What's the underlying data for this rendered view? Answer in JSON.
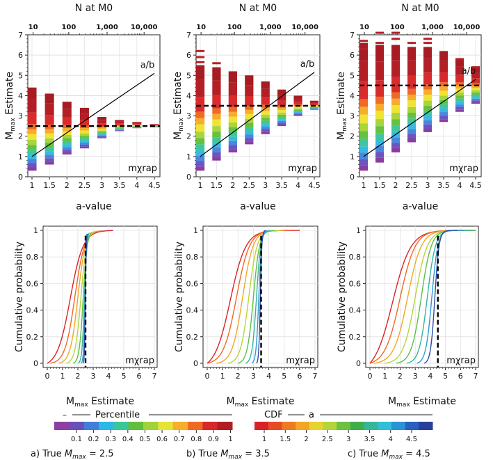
{
  "chart_data": [
    {
      "type": "bar",
      "panel": "a",
      "title": "",
      "xlabel": "a-value",
      "ylabel": "Mmax Estimate",
      "top_xlabel": "N at M0",
      "top_ticks": [
        "10",
        "100",
        "1,000",
        "10,000"
      ],
      "categories": [
        "1",
        "1.5",
        "2",
        "2.5",
        "3",
        "3.5",
        "4",
        "4.5"
      ],
      "ylim": [
        0,
        7
      ],
      "yticks": [
        0,
        1,
        2,
        3,
        4,
        5,
        6,
        7
      ],
      "true_mmax": 2.5,
      "ab_line": {
        "label": "a/b",
        "x": [
          1,
          4.5
        ],
        "y": [
          1.0,
          5.1
        ]
      },
      "bars": [
        {
          "a": 1,
          "low": 0.3,
          "high": 4.4
        },
        {
          "a": 1.5,
          "low": 0.6,
          "high": 4.1
        },
        {
          "a": 2,
          "low": 1.1,
          "high": 3.7
        },
        {
          "a": 2.5,
          "low": 1.4,
          "high": 3.4
        },
        {
          "a": 3,
          "low": 1.9,
          "high": 2.95
        },
        {
          "a": 3.5,
          "low": 2.25,
          "high": 2.8
        },
        {
          "a": 4,
          "low": 2.4,
          "high": 2.7
        },
        {
          "a": 4.5,
          "low": 2.45,
          "high": 2.6
        }
      ],
      "error_marks": [],
      "watermark": "mχrap"
    },
    {
      "type": "bar",
      "panel": "b",
      "title": "",
      "xlabel": "a-value",
      "ylabel": "Mmax Estimate",
      "top_xlabel": "N at M0",
      "top_ticks": [
        "10",
        "100",
        "1,000",
        "10,000"
      ],
      "categories": [
        "1",
        "1.5",
        "2",
        "2.5",
        "3",
        "3.5",
        "4",
        "4.5"
      ],
      "ylim": [
        0,
        7
      ],
      "yticks": [
        0,
        1,
        2,
        3,
        4,
        5,
        6,
        7
      ],
      "true_mmax": 3.5,
      "ab_line": {
        "label": "a/b",
        "x": [
          1,
          4.5
        ],
        "y": [
          1.0,
          5.15
        ]
      },
      "bars": [
        {
          "a": 1,
          "low": 0.3,
          "high": 5.5
        },
        {
          "a": 1.5,
          "low": 0.8,
          "high": 5.4
        },
        {
          "a": 2,
          "low": 1.2,
          "high": 5.2
        },
        {
          "a": 2.5,
          "low": 1.6,
          "high": 5.0
        },
        {
          "a": 3,
          "low": 2.1,
          "high": 4.7
        },
        {
          "a": 3.5,
          "low": 2.5,
          "high": 4.3
        },
        {
          "a": 4,
          "low": 3.0,
          "high": 4.0
        },
        {
          "a": 4.5,
          "low": 3.3,
          "high": 3.75
        }
      ],
      "error_marks": [
        {
          "a": 1,
          "values": [
            6.2,
            5.9,
            5.65
          ]
        },
        {
          "a": 1.5,
          "values": [
            5.6
          ]
        }
      ],
      "watermark": "mχrap"
    },
    {
      "type": "bar",
      "panel": "c",
      "title": "",
      "xlabel": "a-value",
      "ylabel": "Mmax Estimate",
      "top_xlabel": "N at M0",
      "top_ticks": [
        "10",
        "100",
        "1,000",
        "10,000"
      ],
      "categories": [
        "1",
        "1.5",
        "2",
        "2.5",
        "3",
        "3.5",
        "4",
        "4.5"
      ],
      "ylim": [
        0,
        7
      ],
      "yticks": [
        0,
        1,
        2,
        3,
        4,
        5,
        6,
        7
      ],
      "true_mmax": 4.5,
      "ab_line": {
        "label": "a/b",
        "x": [
          1,
          4.5
        ],
        "y": [
          1.0,
          4.8
        ]
      },
      "bars": [
        {
          "a": 1,
          "low": 0.3,
          "high": 6.6
        },
        {
          "a": 1.5,
          "low": 0.7,
          "high": 6.5
        },
        {
          "a": 2,
          "low": 1.2,
          "high": 6.5
        },
        {
          "a": 2.5,
          "low": 1.7,
          "high": 6.4
        },
        {
          "a": 3,
          "low": 2.2,
          "high": 6.4
        },
        {
          "a": 3.5,
          "low": 2.7,
          "high": 6.2
        },
        {
          "a": 4,
          "low": 3.2,
          "high": 5.8
        },
        {
          "a": 4.5,
          "low": 3.6,
          "high": 5.4
        }
      ],
      "error_marks": [
        {
          "a": 1,
          "values": [
            6.7,
            6.3
          ]
        },
        {
          "a": 1.5,
          "values": [
            7.1,
            6.6
          ]
        },
        {
          "a": 2,
          "values": [
            7.1,
            6.8
          ]
        },
        {
          "a": 2.5,
          "values": [
            6.6
          ]
        },
        {
          "a": 3,
          "values": [
            6.8,
            6.6
          ]
        },
        {
          "a": 4,
          "values": [
            5.8
          ]
        },
        {
          "a": 4.5,
          "values": [
            5.4
          ]
        }
      ],
      "watermark": "mχrap"
    },
    {
      "type": "line",
      "panel": "a",
      "xlabel": "Mmax Estimate",
      "ylabel": "Cumulative probability",
      "xlim": [
        0,
        7
      ],
      "xticks": [
        0,
        1,
        2,
        3,
        4,
        5,
        6,
        7
      ],
      "ylim": [
        0,
        1
      ],
      "yticks": [
        0,
        0.2,
        0.4,
        0.6,
        0.8,
        1
      ],
      "ytick_labels": [
        "0",
        "0.2",
        "0.4",
        "0.6",
        "0.8",
        "1"
      ],
      "true_mmax": 2.5,
      "series": [
        {
          "a": 1,
          "median": 1.5,
          "spread": 0.42,
          "end": 4.3
        },
        {
          "a": 1.5,
          "median": 1.8,
          "spread": 0.32,
          "end": 3.6
        },
        {
          "a": 2,
          "median": 2.0,
          "spread": 0.25,
          "end": 3.3
        },
        {
          "a": 2.5,
          "median": 2.2,
          "spread": 0.19,
          "end": 3.1
        },
        {
          "a": 3,
          "median": 2.35,
          "spread": 0.13,
          "end": 2.9
        },
        {
          "a": 3.5,
          "median": 2.43,
          "spread": 0.08,
          "end": 2.75
        },
        {
          "a": 4,
          "median": 2.47,
          "spread": 0.05,
          "end": 2.65
        },
        {
          "a": 4.5,
          "median": 2.49,
          "spread": 0.03,
          "end": 2.6
        }
      ],
      "watermark": "mχrap"
    },
    {
      "type": "line",
      "panel": "b",
      "xlabel": "Mmax Estimate",
      "ylabel": "Cumulative probability",
      "xlim": [
        0,
        7
      ],
      "xticks": [
        0,
        1,
        2,
        3,
        4,
        5,
        6,
        7
      ],
      "ylim": [
        0,
        1
      ],
      "yticks": [
        0,
        0.2,
        0.4,
        0.6,
        0.8,
        1
      ],
      "ytick_labels": [
        "0",
        "0.2",
        "0.4",
        "0.6",
        "0.8",
        "1"
      ],
      "true_mmax": 3.5,
      "series": [
        {
          "a": 1,
          "median": 1.5,
          "spread": 0.5,
          "end": 6.0
        },
        {
          "a": 1.5,
          "median": 1.9,
          "spread": 0.42,
          "end": 5.4
        },
        {
          "a": 2,
          "median": 2.3,
          "spread": 0.34,
          "end": 5.0
        },
        {
          "a": 2.5,
          "median": 2.7,
          "spread": 0.27,
          "end": 4.7
        },
        {
          "a": 3,
          "median": 3.0,
          "spread": 0.2,
          "end": 4.4
        },
        {
          "a": 3.5,
          "median": 3.2,
          "spread": 0.14,
          "end": 4.1
        },
        {
          "a": 4,
          "median": 3.35,
          "spread": 0.09,
          "end": 3.9
        },
        {
          "a": 4.5,
          "median": 3.45,
          "spread": 0.05,
          "end": 3.8
        }
      ],
      "watermark": "mχrap"
    },
    {
      "type": "line",
      "panel": "c",
      "xlabel": "Mmax Estimate",
      "ylabel": "Cumulative probability",
      "xlim": [
        0,
        7
      ],
      "xticks": [
        0,
        1,
        2,
        3,
        4,
        5,
        6,
        7
      ],
      "ylim": [
        0,
        1
      ],
      "yticks": [
        0,
        0.2,
        0.4,
        0.6,
        0.8,
        1
      ],
      "ytick_labels": [
        "0",
        "0.2",
        "0.4",
        "0.6",
        "0.8",
        "1"
      ],
      "true_mmax": 4.5,
      "series": [
        {
          "a": 1,
          "median": 1.5,
          "spread": 0.6,
          "end": 7.0
        },
        {
          "a": 1.5,
          "median": 2.0,
          "spread": 0.5,
          "end": 7.0
        },
        {
          "a": 2,
          "median": 2.5,
          "spread": 0.45,
          "end": 7.0
        },
        {
          "a": 2.5,
          "median": 3.0,
          "spread": 0.4,
          "end": 7.0
        },
        {
          "a": 3,
          "median": 3.4,
          "spread": 0.33,
          "end": 7.0
        },
        {
          "a": 3.5,
          "median": 3.8,
          "spread": 0.27,
          "end": 6.8
        },
        {
          "a": 4,
          "median": 4.1,
          "spread": 0.2,
          "end": 6.2
        },
        {
          "a": 4.5,
          "median": 4.3,
          "spread": 0.14,
          "end": 5.8
        }
      ],
      "watermark": "mχrap"
    }
  ],
  "legend": {
    "percentile": {
      "dash_label": "–",
      "label": "Percentile",
      "ticks": [
        "0.1",
        "0.2",
        "0.3",
        "0.4",
        "0.5",
        "0.6",
        "0.7",
        "0.8",
        "0.9",
        "1"
      ],
      "colors": [
        "#8e3ea0",
        "#6a4fb8",
        "#3f7fd8",
        "#2cb7e6",
        "#39c79a",
        "#62bf3a",
        "#9fd33a",
        "#e6e335",
        "#f6ae2c",
        "#ee6a23",
        "#d8282b",
        "#b01e24"
      ]
    },
    "cdf": {
      "label": "CDF",
      "a_label": "a",
      "ticks": [
        "1",
        "1.5",
        "2",
        "2.5",
        "3",
        "3.5",
        "4",
        "4.5"
      ],
      "colors": [
        "#d8222a",
        "#e74a25",
        "#ee7a22",
        "#f2a623",
        "#e7d22f",
        "#b3d53b",
        "#6cc142",
        "#3fae4a",
        "#36b59a",
        "#2fbfd7",
        "#2a93d8",
        "#2a5ec0",
        "#2a3f9c"
      ]
    }
  },
  "captions": [
    {
      "prefix": "a) True ",
      "symbol": "M",
      "sub": "max",
      "suffix": " = 2.5"
    },
    {
      "prefix": "b) True ",
      "symbol": "M",
      "sub": "max",
      "suffix": " = 3.5"
    },
    {
      "prefix": "c)            True ",
      "symbol": "M",
      "sub": "max",
      "suffix": " = 4.5"
    }
  ]
}
